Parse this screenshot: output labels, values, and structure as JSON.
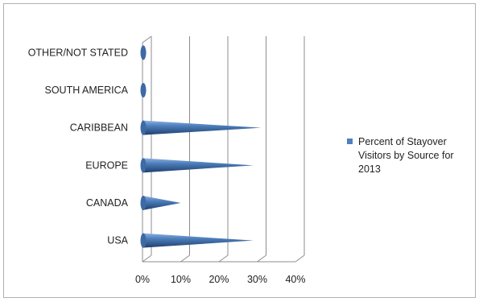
{
  "chart_data": {
    "type": "bar",
    "orientation": "horizontal",
    "style": "3d-cone",
    "categories": [
      "USA",
      "CANADA",
      "EUROPE",
      "CARIBBEAN",
      "SOUTH AMERICA",
      "OTHER/NOT STATED"
    ],
    "series": [
      {
        "name": "Percent of Stayover Visitors by Source for 2013",
        "values": [
          29,
          10,
          29,
          31,
          1,
          1
        ],
        "color": "#4f81bd"
      }
    ],
    "xlim": [
      0,
      40
    ],
    "xticks": [
      "0%",
      "10%",
      "20%",
      "30%",
      "40%"
    ],
    "grid": true,
    "legend_position": "right",
    "legend_lines": [
      "Percent of Stayover",
      "Visitors by Source for",
      "2013"
    ]
  }
}
